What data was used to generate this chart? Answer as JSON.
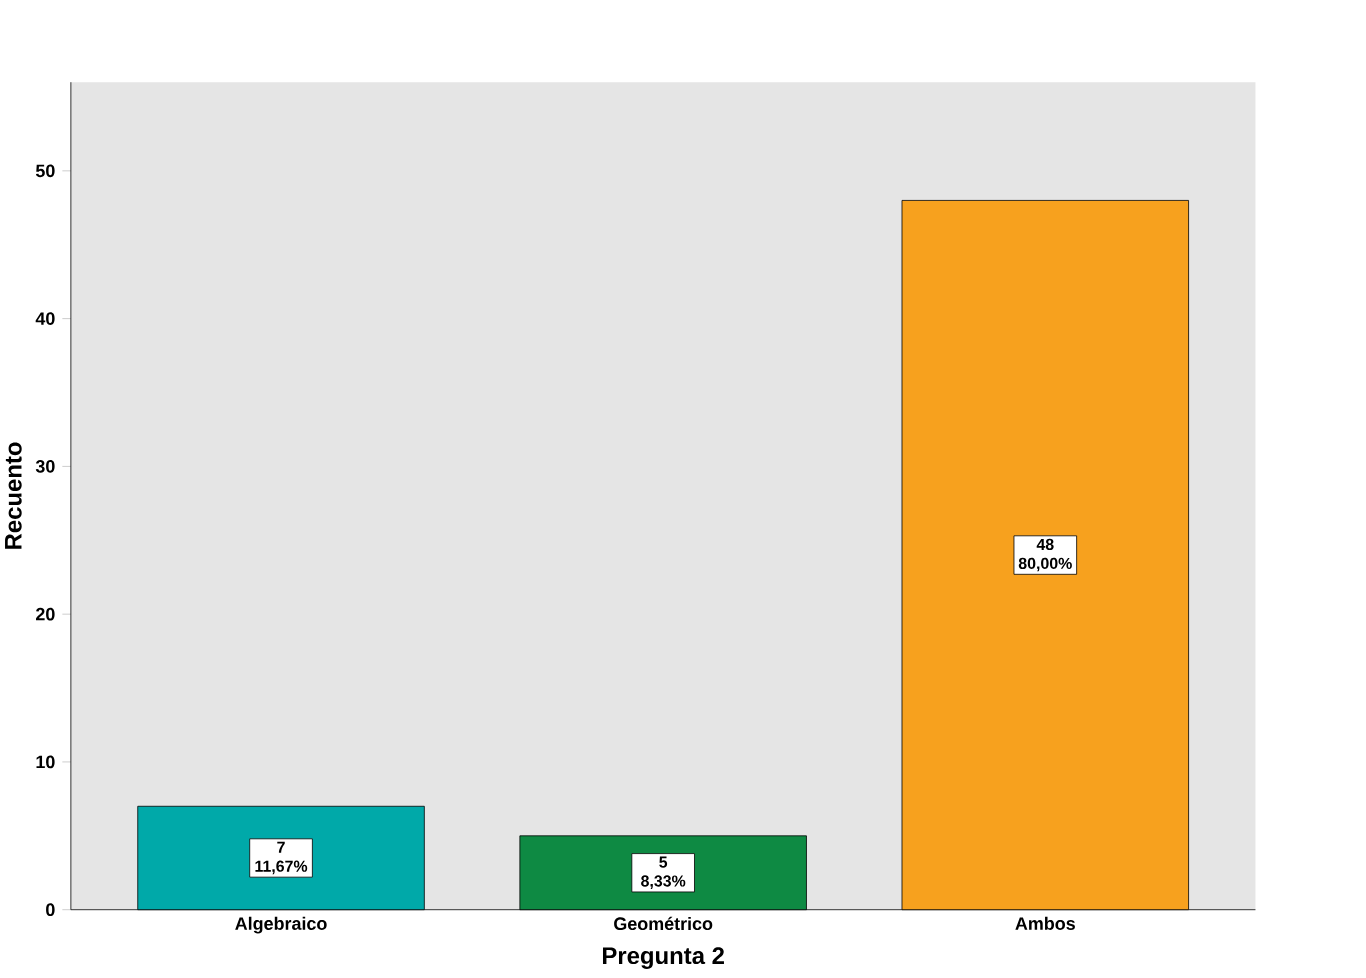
{
  "chart_data": {
    "type": "bar",
    "categories": [
      "Algebraico",
      "Geométrico",
      "Ambos"
    ],
    "values": [
      7,
      5,
      48
    ],
    "colors": [
      "#00a9a9",
      "#0e8a43",
      "#f7a11e"
    ],
    "value_labels": [
      "7 11,67%",
      "5 8,33%",
      "48 80,00%"
    ],
    "xlabel": "Pregunta 2",
    "ylabel": "Recuento",
    "ylim": [
      0,
      56
    ],
    "yticks": [
      0,
      10,
      20,
      30,
      40,
      50
    ],
    "grid": false
  }
}
